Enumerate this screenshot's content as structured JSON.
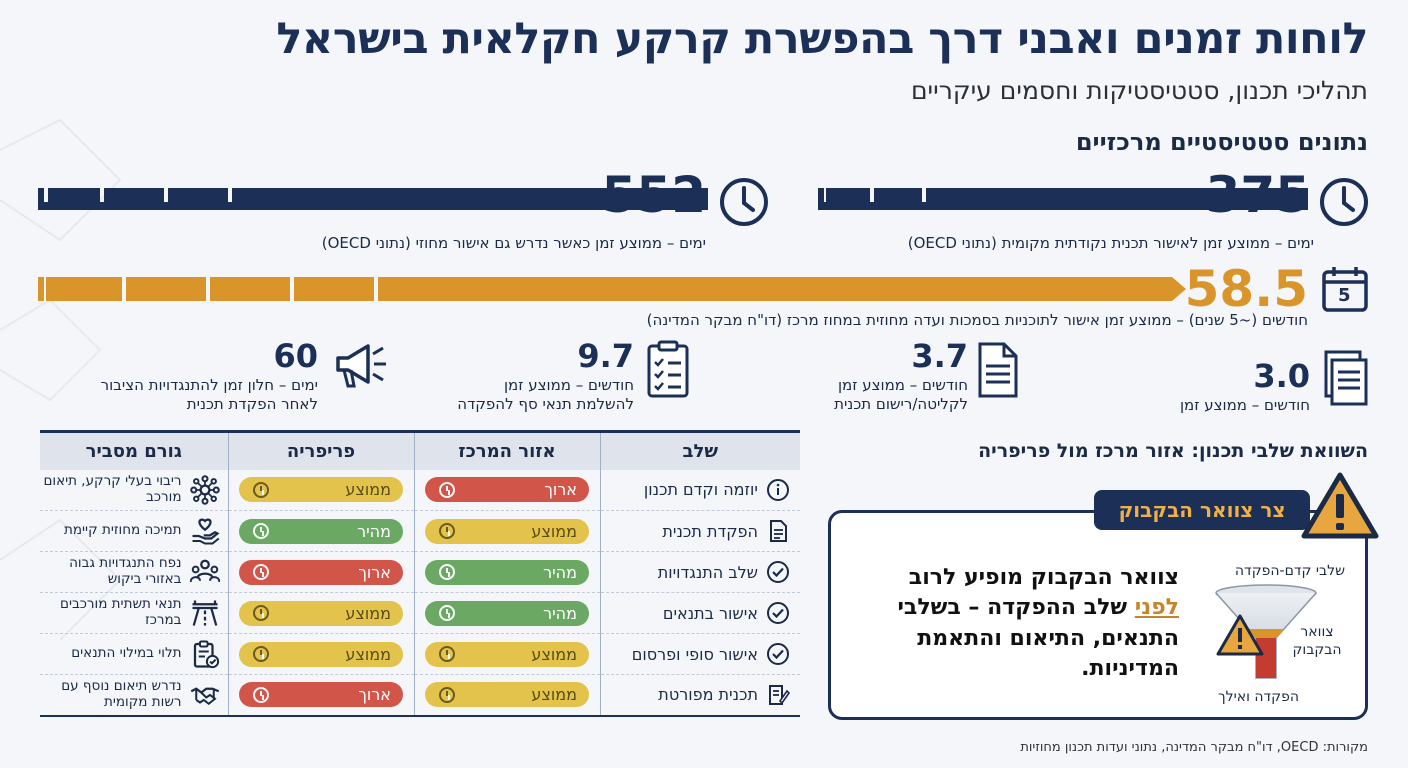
{
  "title": "לוחות זמנים ואבני דרך בהפשרת קרקע חקלאית בישראל",
  "subtitle": "תהליכי תכנון, סטטיסטיקות וחסמים עיקריים",
  "stats_heading": "נתונים סטטיסטיים מרכזיים",
  "stat1": {
    "value": "375",
    "desc": "ימים – ממוצע זמן לאישור תכנית נקודתית מקומית (נתוני OECD)",
    "icon": "clock-icon"
  },
  "stat2": {
    "value": "552",
    "desc": "ימים – ממוצע זמן כאשר נדרש גם אישור מחוזי (נתוני OECD)",
    "icon": "clock-icon"
  },
  "stat3": {
    "value": "58.5",
    "desc": "חודשים (~5 שנים) – ממוצע זמן אישור לתוכניות בסמכות ועדה מחוזית במחוז מרכז (דו\"ח מבקר המדינה)",
    "icon": "calendar-icon",
    "icon_text": "5"
  },
  "small_stats": [
    {
      "value": "3.0",
      "line1": "חודשים – ממוצע זמן",
      "line2": "",
      "icon": "document-stack-icon"
    },
    {
      "value": "3.7",
      "line1": "חודשים – ממוצע זמן",
      "line2": "לקליטה/רישום תכנית",
      "icon": "document-icon"
    },
    {
      "value": "9.7",
      "line1": "חודשים – ממוצע זמן",
      "line2": "להשלמת תנאי סף להפקדה",
      "icon": "checklist-icon"
    },
    {
      "value": "60",
      "line1": "ימים – חלון זמן להתנגדויות הציבור",
      "line2": "לאחר הפקדת תכנית",
      "icon": "megaphone-icon"
    }
  ],
  "comparison_heading": "השוואת שלבי תכנון: אזור מרכז מול פריפריה",
  "table": {
    "headers": [
      "שלב",
      "אזור המרכז",
      "פריפריה",
      "גורם מסביר"
    ],
    "rows": [
      {
        "stage": "יוזמה וקדם תכנון",
        "center": "ארוך",
        "periphery": "ממוצע",
        "factor": "ריבוי בעלי קרקע, תיאום מורכב",
        "stage_icon": "info-icon",
        "factor_icon": "network-icon"
      },
      {
        "stage": "הפקדת תכנית",
        "center": "ממוצע",
        "periphery": "מהיר",
        "factor": "תמיכה מחוזית קיימת",
        "stage_icon": "document-icon",
        "factor_icon": "hand-heart-icon"
      },
      {
        "stage": "שלב התנגדויות",
        "center": "מהיר",
        "periphery": "ארוך",
        "factor": "נפח התנגדויות גבוה באזורי ביקוש",
        "stage_icon": "check-circle-icon",
        "factor_icon": "people-icon"
      },
      {
        "stage": "אישור בתנאים",
        "center": "מהיר",
        "periphery": "ממוצע",
        "factor": "תנאי תשתית מורכבים במרכז",
        "stage_icon": "check-circle-icon",
        "factor_icon": "road-icon"
      },
      {
        "stage": "אישור סופי ופרסום",
        "center": "ממוצע",
        "periphery": "ממוצע",
        "factor": "תלוי במילוי התנאים",
        "stage_icon": "check-circle-icon",
        "factor_icon": "clipboard-check-icon"
      },
      {
        "stage": "תכנית מפורטת",
        "center": "ממוצע",
        "periphery": "ארוך",
        "factor": "נדרש תיאום נוסף עם רשות מקומית",
        "stage_icon": "edit-document-icon",
        "factor_icon": "handshake-icon"
      }
    ]
  },
  "status_colors": {
    "ארוך": "#d2554a",
    "ממוצע": "#e3c34b",
    "מהיר": "#6aa863"
  },
  "bottleneck": {
    "badge": "צר צוואר הבקבוק",
    "text_pre": "צוואר הבקבוק מופיע לרוב",
    "text_underlined": "לפני",
    "text_post": "שלב ההפקדה – בשלבי התנאים, התיאום והתאמת המדיניות.",
    "funnel_top": "שלבי קדם-הפקדה",
    "funnel_side": "צוואר הבקבוק",
    "funnel_bottom": "הפקדה ואילך"
  },
  "sources": "מקורות: OECD, דו\"ח מבקר המדינה, נתוני ועדות תכנון מחוזיות",
  "colors": {
    "navy": "#1b2f57",
    "orange": "#d9952a",
    "bg": "#f4f6f9"
  }
}
